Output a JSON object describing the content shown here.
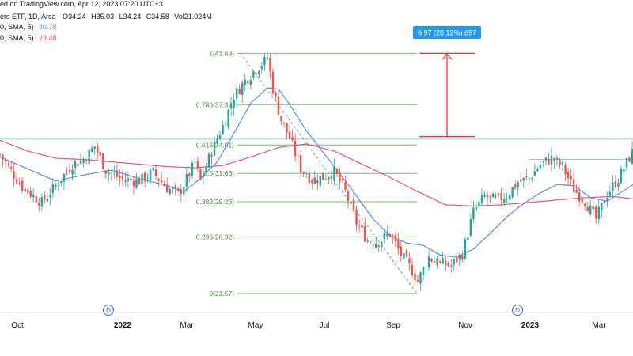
{
  "header": {
    "source_line": "ed on TradingView.com, Apr 12, 2023 07:20 UTC+3",
    "symbol_line": "ers ETF, 1D, Arca",
    "ohlc": {
      "o_label": "O",
      "o": "34.24",
      "h_label": "H",
      "h": "35.03",
      "l_label": "L",
      "l": "34.24",
      "c_label": "C",
      "c": "34.58",
      "vol_label": "Vol",
      "vol": "21.024M"
    },
    "ma1_label": "0, SMA, 5)",
    "ma1_value": "30.78",
    "ma2_label": "0, SMA, 5)",
    "ma2_value": "29.48"
  },
  "measure_box": {
    "text": "6.97 (20.12%) 697",
    "color": "#2196f3"
  },
  "colors": {
    "up": "#26a69a",
    "down": "#ef5350",
    "ma_fast": "#5b8def",
    "ma_slow": "#e5577a",
    "fib": "#4caf50",
    "hline": "#8fd0dc",
    "measure": "#e53935"
  },
  "chart_data": {
    "type": "candlestick",
    "x_ticks": [
      {
        "label": "Oct",
        "bold": false
      },
      {
        "label": "2022",
        "bold": true
      },
      {
        "label": "Mar",
        "bold": false
      },
      {
        "label": "May",
        "bold": false
      },
      {
        "label": "Jul",
        "bold": false
      },
      {
        "label": "Sep",
        "bold": false
      },
      {
        "label": "Nov",
        "bold": false
      },
      {
        "label": "2023",
        "bold": true
      },
      {
        "label": "Mar",
        "bold": false
      }
    ],
    "dividend_markers": [
      "D",
      "D"
    ],
    "fib_levels": [
      {
        "ratio": "1",
        "price": 41.69,
        "label": "1(41.69)"
      },
      {
        "ratio": "0.786",
        "price": 37.39,
        "label": "0.786(37.39)"
      },
      {
        "ratio": "0.618",
        "price": 34.01,
        "label": "0.618(34.01)"
      },
      {
        "ratio": "0.5",
        "price": 31.63,
        "label": "0.5(31.63)"
      },
      {
        "ratio": "0.382",
        "price": 29.26,
        "label": "0.382(29.26)"
      },
      {
        "ratio": "0.236",
        "price": 26.32,
        "label": "0.236(26.32)"
      },
      {
        "ratio": "0",
        "price": 21.57,
        "label": "0(21.57)"
      }
    ],
    "resistance_levels": [
      34.5,
      32.8
    ],
    "measure": {
      "from": 34.72,
      "to": 41.69,
      "change": 6.97,
      "change_pct": 20.12
    },
    "price_path": [
      [
        0,
        33.2
      ],
      [
        8,
        30.5
      ],
      [
        15,
        29.2
      ],
      [
        20,
        30.6
      ],
      [
        26,
        32.4
      ],
      [
        30,
        32.8
      ],
      [
        34,
        33.9
      ],
      [
        38,
        31.9
      ],
      [
        44,
        31.1
      ],
      [
        50,
        31.0
      ],
      [
        55,
        31.7
      ],
      [
        60,
        30.4
      ],
      [
        64,
        29.9
      ],
      [
        66,
        30.7
      ],
      [
        70,
        32.5
      ],
      [
        72,
        31.0
      ],
      [
        76,
        33.5
      ],
      [
        80,
        35.6
      ],
      [
        84,
        38.1
      ],
      [
        88,
        39.4
      ],
      [
        92,
        40.4
      ],
      [
        95,
        41.0
      ],
      [
        96,
        41.4
      ],
      [
        98,
        38.7
      ],
      [
        101,
        36.1
      ],
      [
        104,
        34.6
      ],
      [
        108,
        32.0
      ],
      [
        112,
        31.1
      ],
      [
        116,
        31.3
      ],
      [
        120,
        31.8
      ],
      [
        124,
        30.1
      ],
      [
        128,
        27.5
      ],
      [
        132,
        26.0
      ],
      [
        136,
        25.9
      ],
      [
        140,
        26.6
      ],
      [
        144,
        24.8
      ],
      [
        148,
        23.5
      ],
      [
        150,
        22.6
      ],
      [
        154,
        24.6
      ],
      [
        158,
        24.1
      ],
      [
        162,
        23.9
      ],
      [
        166,
        24.9
      ],
      [
        170,
        28.4
      ],
      [
        174,
        29.7
      ],
      [
        178,
        29.4
      ],
      [
        182,
        29.8
      ],
      [
        186,
        30.9
      ],
      [
        190,
        31.2
      ],
      [
        194,
        32.4
      ],
      [
        198,
        32.9
      ],
      [
        202,
        32.2
      ],
      [
        206,
        30.3
      ],
      [
        210,
        29.3
      ],
      [
        214,
        27.8
      ],
      [
        218,
        29.9
      ],
      [
        222,
        31.2
      ],
      [
        228,
        33.8
      ]
    ],
    "ma_fast": [
      [
        0,
        33.0
      ],
      [
        10,
        32.0
      ],
      [
        20,
        31.0
      ],
      [
        30,
        31.5
      ],
      [
        40,
        31.9
      ],
      [
        50,
        31.2
      ],
      [
        60,
        30.6
      ],
      [
        66,
        30.1
      ],
      [
        72,
        31.2
      ],
      [
        78,
        32.6
      ],
      [
        84,
        35.0
      ],
      [
        90,
        37.5
      ],
      [
        96,
        38.8
      ],
      [
        100,
        38.7
      ],
      [
        104,
        37.4
      ],
      [
        110,
        35.2
      ],
      [
        118,
        32.8
      ],
      [
        126,
        30.4
      ],
      [
        134,
        27.8
      ],
      [
        140,
        26.4
      ],
      [
        146,
        25.8
      ],
      [
        152,
        25.6
      ],
      [
        158,
        24.8
      ],
      [
        164,
        24.6
      ],
      [
        170,
        25.3
      ],
      [
        176,
        26.6
      ],
      [
        182,
        28.0
      ],
      [
        188,
        29.1
      ],
      [
        194,
        30.0
      ],
      [
        200,
        30.7
      ],
      [
        206,
        30.6
      ],
      [
        212,
        29.6
      ],
      [
        218,
        29.3
      ],
      [
        224,
        30.2
      ],
      [
        228,
        30.78
      ]
    ],
    "ma_slow": [
      [
        0,
        34.4
      ],
      [
        10,
        33.5
      ],
      [
        20,
        32.9
      ],
      [
        30,
        32.8
      ],
      [
        40,
        32.6
      ],
      [
        50,
        32.4
      ],
      [
        60,
        32.2
      ],
      [
        70,
        32.1
      ],
      [
        80,
        32.3
      ],
      [
        90,
        33.0
      ],
      [
        100,
        33.8
      ],
      [
        110,
        34.1
      ],
      [
        120,
        33.5
      ],
      [
        130,
        32.4
      ],
      [
        140,
        31.3
      ],
      [
        150,
        30.1
      ],
      [
        160,
        29.0
      ],
      [
        170,
        28.9
      ],
      [
        180,
        29.0
      ],
      [
        190,
        29.2
      ],
      [
        200,
        29.4
      ],
      [
        210,
        29.6
      ],
      [
        220,
        29.7
      ],
      [
        228,
        29.48
      ]
    ]
  }
}
